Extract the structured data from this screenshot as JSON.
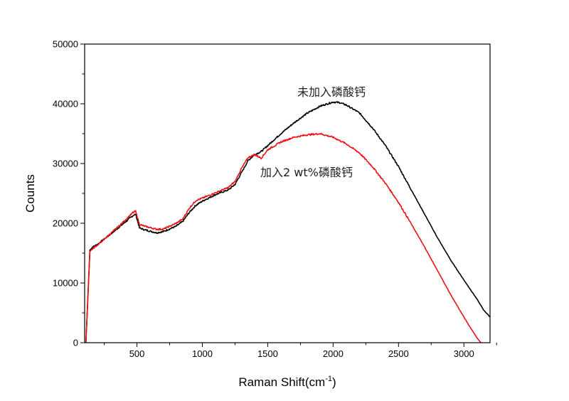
{
  "chart_data": {
    "type": "line",
    "title": "",
    "xlabel": "Raman Shift(cm",
    "xlabel_sup": "-1",
    "xlabel_end": ")",
    "ylabel": "Counts",
    "xlim": [
      100,
      3200
    ],
    "ylim": [
      0,
      50000
    ],
    "xticks": [
      500,
      1000,
      1500,
      2000,
      2500,
      3000
    ],
    "xtick_labels": [
      "500",
      "1000",
      "1500",
      "2000",
      "2500",
      "3000"
    ],
    "yticks": [
      0,
      10000,
      20000,
      30000,
      40000,
      50000
    ],
    "ytick_labels": [
      "0",
      "10000",
      "20000",
      "30000",
      "40000",
      "50000"
    ],
    "grid": false,
    "series": [
      {
        "name": "未加入磷酸钙",
        "color": "#000000",
        "x": [
          110,
          140,
          160,
          200,
          300,
          400,
          470,
          490,
          520,
          560,
          650,
          700,
          800,
          850,
          900,
          950,
          1000,
          1100,
          1200,
          1250,
          1300,
          1350,
          1400,
          1450,
          1500,
          1600,
          1700,
          1800,
          1900,
          2000,
          2050,
          2100,
          2200,
          2300,
          2400,
          2500,
          2600,
          2700,
          2800,
          2900,
          3000,
          3100,
          3150,
          3200
        ],
        "y": [
          0,
          15500,
          16000,
          16500,
          18200,
          20000,
          21300,
          21500,
          19200,
          18900,
          18400,
          18600,
          19500,
          20300,
          21800,
          23000,
          23700,
          24800,
          25600,
          26500,
          28500,
          30500,
          31500,
          32000,
          33000,
          35000,
          36800,
          38400,
          39600,
          40300,
          40200,
          39800,
          38500,
          36000,
          33000,
          29500,
          25500,
          21500,
          17500,
          13800,
          10500,
          7300,
          5500,
          4300
        ]
      },
      {
        "name": "加入2 wt%磷酸钙",
        "color": "#ee1111",
        "x": [
          110,
          140,
          160,
          200,
          300,
          400,
          470,
          490,
          520,
          560,
          650,
          700,
          800,
          850,
          900,
          950,
          1000,
          1100,
          1200,
          1250,
          1300,
          1350,
          1400,
          1450,
          1500,
          1600,
          1700,
          1800,
          1900,
          2000,
          2100,
          2200,
          2300,
          2400,
          2500,
          2600,
          2700,
          2800,
          2900,
          3000,
          3050,
          3100,
          3130
        ],
        "y": [
          0,
          15300,
          15700,
          16400,
          18300,
          20300,
          21800,
          22000,
          19800,
          19500,
          19000,
          19000,
          20000,
          20700,
          22500,
          23800,
          24200,
          25100,
          26000,
          27000,
          29200,
          31000,
          31500,
          30900,
          32300,
          33600,
          34400,
          34800,
          35000,
          34400,
          33300,
          31800,
          29500,
          26700,
          23500,
          19800,
          16000,
          12000,
          8000,
          4300,
          2500,
          800,
          0
        ]
      }
    ],
    "annotations": [
      "未加入磷酸钙",
      "加入2 wt%磷酸钙"
    ]
  }
}
